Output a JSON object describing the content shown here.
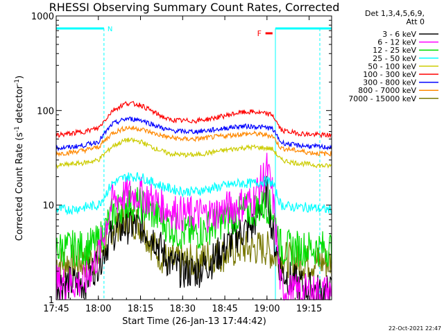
{
  "chart_data": {
    "type": "line",
    "title": "RHESSI Observing Summary Count Rates, Corrected",
    "xlabel": "Start Time (26-Jan-13 17:44:42)",
    "ylabel": "Corrected Count Rate (s⁻¹ detector⁻¹)",
    "yscale": "log",
    "ylim": [
      1,
      1000
    ],
    "xlim": [
      "17:45",
      "19:23"
    ],
    "x_ticks": [
      "17:45",
      "18:00",
      "18:15",
      "18:30",
      "18:45",
      "19:00",
      "19:15"
    ],
    "y_ticks": [
      "1",
      "10",
      "100",
      "1000"
    ],
    "legend": {
      "position": "top-right",
      "header": [
        "Det 1,3,4,5,6,9,",
        "Att 0"
      ]
    },
    "flags": {
      "n_label": "N",
      "f_label": "F",
      "night_intervals": [
        [
          "17:45",
          "18:02"
        ],
        [
          "19:03",
          "19:23"
        ]
      ],
      "flare_interval": [
        "18:57",
        "19:00"
      ]
    },
    "x": [
      "17:45",
      "17:50",
      "17:55",
      "18:00",
      "18:05",
      "18:10",
      "18:15",
      "18:20",
      "18:25",
      "18:30",
      "18:35",
      "18:40",
      "18:45",
      "18:50",
      "18:55",
      "19:00",
      "19:02",
      "19:05",
      "19:10",
      "19:15",
      "19:20",
      "19:23"
    ],
    "series": [
      {
        "name": "3 - 6 keV",
        "color": "#000000",
        "values": [
          1.5,
          1.5,
          1.5,
          2.5,
          5,
          6,
          6,
          4.5,
          2.5,
          2,
          2,
          2.5,
          3.5,
          5,
          6,
          15,
          5,
          2,
          1.5,
          1.3,
          1.2,
          1.2
        ]
      },
      {
        "name": "6 - 12 keV",
        "color": "#ff00ff",
        "values": [
          1.5,
          1.5,
          1.5,
          3,
          11,
          13,
          13,
          11,
          9,
          8,
          8,
          8,
          9,
          10,
          11,
          24,
          13,
          1.3,
          1.2,
          1.2,
          1.2,
          1.2
        ]
      },
      {
        "name": "12 - 25 keV",
        "color": "#00dd00",
        "values": [
          3.5,
          3.5,
          3.5,
          4,
          8,
          11,
          10,
          8,
          6,
          5,
          5,
          6,
          7,
          8,
          9,
          10,
          9,
          3.5,
          3.5,
          3.5,
          3.5,
          3.5
        ]
      },
      {
        "name": "25 - 50 keV",
        "color": "#00ffff",
        "values": [
          9,
          9,
          9.5,
          10,
          17,
          20,
          20,
          17,
          15,
          14,
          14,
          15,
          16,
          17,
          17,
          18,
          17,
          10,
          9.5,
          9.5,
          9,
          9
        ]
      },
      {
        "name": "50 - 100 keV",
        "color": "#cccc00",
        "values": [
          26,
          27,
          28,
          30,
          42,
          49,
          47,
          40,
          35,
          34,
          34,
          36,
          38,
          40,
          41,
          40,
          39,
          30,
          28,
          27,
          26,
          26
        ]
      },
      {
        "name": "100 - 300 keV",
        "color": "#ff0000",
        "values": [
          55,
          57,
          60,
          65,
          100,
          120,
          115,
          95,
          80,
          78,
          78,
          82,
          88,
          95,
          97,
          92,
          90,
          62,
          58,
          56,
          55,
          55
        ]
      },
      {
        "name": "300 - 800 keV",
        "color": "#0000ff",
        "values": [
          40,
          41,
          43,
          47,
          72,
          82,
          80,
          70,
          62,
          60,
          60,
          62,
          65,
          68,
          68,
          66,
          64,
          46,
          43,
          42,
          41,
          41
        ]
      },
      {
        "name": "800 - 7000 keV",
        "color": "#ff8800",
        "values": [
          35,
          36,
          38,
          41,
          58,
          66,
          64,
          57,
          52,
          50,
          50,
          52,
          54,
          56,
          57,
          55,
          54,
          40,
          38,
          36,
          35,
          35
        ]
      },
      {
        "name": "7000 - 15000 keV",
        "color": "#777700",
        "values": [
          2.5,
          2.5,
          2.5,
          2.8,
          6,
          7,
          6.5,
          3.5,
          2.5,
          2.5,
          2.5,
          3,
          3,
          3.5,
          3.5,
          3.5,
          3,
          2.8,
          2.5,
          2.5,
          2.5,
          2.5
        ]
      }
    ]
  },
  "timestamp": "22-Oct-2021 22:47"
}
